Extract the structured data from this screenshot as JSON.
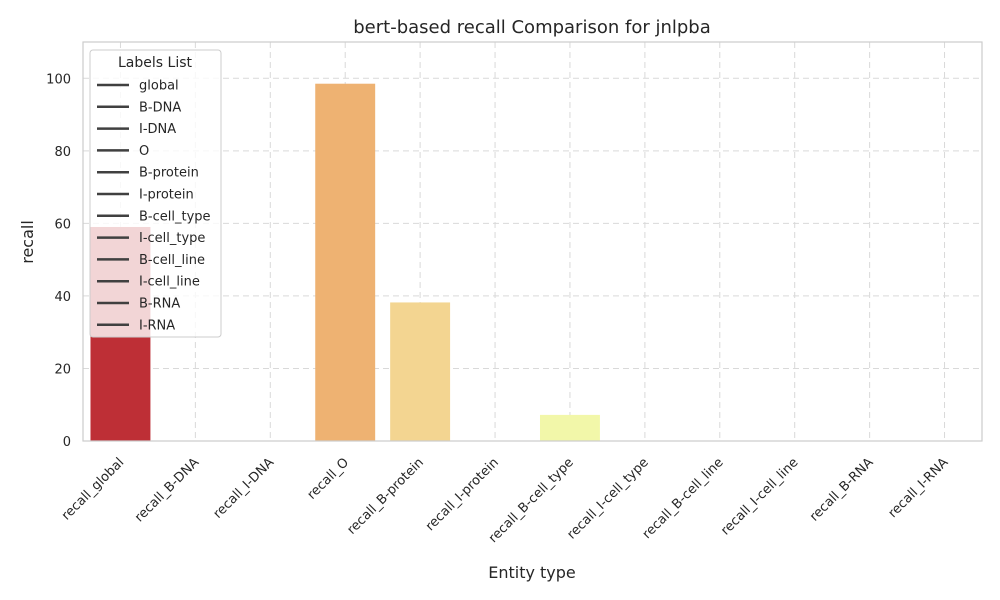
{
  "chart_data": {
    "type": "bar",
    "title": "bert-based recall Comparison for jnlpba",
    "xlabel": "Entity type",
    "ylabel": "recall",
    "ylim": [
      0,
      110
    ],
    "yticks": [
      0,
      20,
      40,
      60,
      80,
      100
    ],
    "grid": true,
    "categories": [
      "recall_global",
      "recall_B-DNA",
      "recall_I-DNA",
      "recall_O",
      "recall_B-protein",
      "recall_I-protein",
      "recall_B-cell_type",
      "recall_I-cell_type",
      "recall_B-cell_line",
      "recall_I-cell_line",
      "recall_B-RNA",
      "recall_I-RNA"
    ],
    "values": [
      59,
      0,
      0,
      98.5,
      38.2,
      0,
      7.2,
      0,
      0,
      0,
      0,
      0
    ],
    "colors": [
      "#be2f36",
      "#d9473d",
      "#ee7f52",
      "#eeb272",
      "#f3d591",
      "#f6e9a0",
      "#f2f7a9",
      "#dff2a8",
      "#b9e3a3",
      "#8ccfa3",
      "#5db3a8",
      "#3a8eb4"
    ],
    "legend": {
      "title": "Labels List",
      "position": "upper-left",
      "entries": [
        "global",
        "B-DNA",
        "I-DNA",
        "O",
        "B-protein",
        "I-protein",
        "B-cell_type",
        "I-cell_type",
        "B-cell_line",
        "I-cell_line",
        "B-RNA",
        "I-RNA"
      ]
    }
  }
}
